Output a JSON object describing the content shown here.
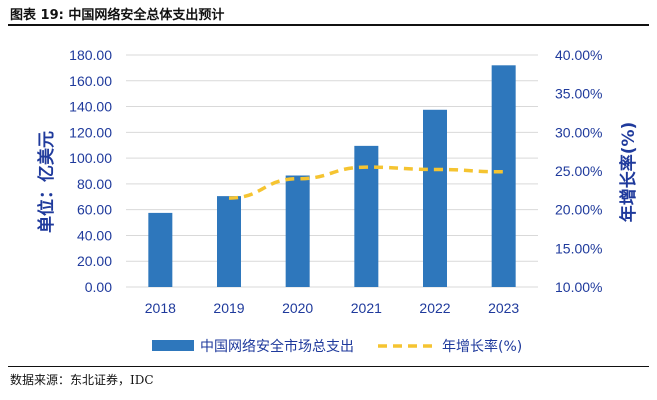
{
  "header": {
    "title": "图表 19:  中国网络安全总体支出预计"
  },
  "footer": {
    "source": "数据来源：东北证券，IDC"
  },
  "colors": {
    "bar": "#2e77bc",
    "line": "#f5c431",
    "axis_text": "#1f3a9c",
    "grid": "#d9d9d9"
  },
  "chart_data": {
    "type": "bar",
    "categories": [
      "2018",
      "2019",
      "2020",
      "2021",
      "2022",
      "2023"
    ],
    "series": [
      {
        "name": "中国网络安全市场总支出",
        "type": "bar",
        "axis": "left",
        "values": [
          57.5,
          70.5,
          86.5,
          109.5,
          137.5,
          172.0
        ]
      },
      {
        "name": "年增长率(%)",
        "type": "line",
        "style": "dashed",
        "axis": "right",
        "values": [
          null,
          21.5,
          24.0,
          25.5,
          25.2,
          24.9
        ]
      }
    ],
    "ylabel": "单位：亿美元",
    "ylim": [
      0,
      180
    ],
    "y_ticks": [
      "0.00",
      "20.00",
      "40.00",
      "60.00",
      "80.00",
      "100.00",
      "120.00",
      "140.00",
      "160.00",
      "180.00"
    ],
    "y2label": "年增长率(%)",
    "y2lim": [
      10,
      40
    ],
    "y2_ticks": [
      "10.00%",
      "15.00%",
      "20.00%",
      "25.00%",
      "30.00%",
      "35.00%",
      "40.00%"
    ],
    "grid": true,
    "legend": "bottom-center"
  }
}
